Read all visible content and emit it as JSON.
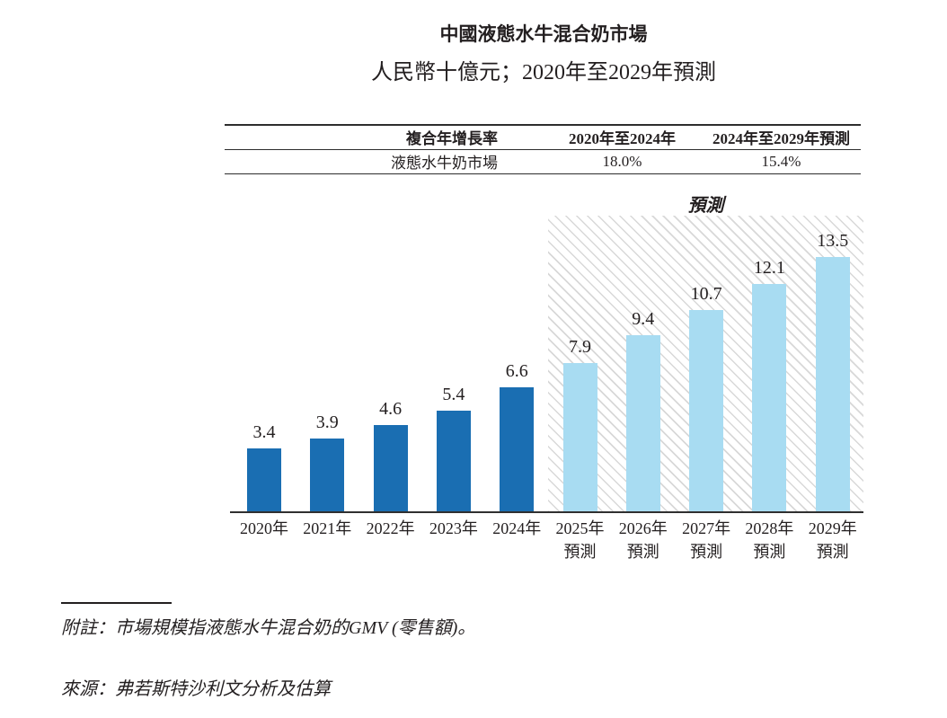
{
  "title": "中國液態水牛混合奶市場",
  "subtitle": "人民幣十億元；2020年至2029年預測",
  "cagr_table": {
    "headers": [
      "複合年增長率",
      "2020年至2024年",
      "2024年至2029年預測"
    ],
    "rows": [
      [
        "液態水牛奶市場",
        "18.0%",
        "15.4%"
      ]
    ]
  },
  "chart_data": {
    "type": "bar",
    "title": "中國液態水牛混合奶市場",
    "unit": "人民幣十億元",
    "categories": [
      "2020年",
      "2021年",
      "2022年",
      "2023年",
      "2024年",
      "2025年預測",
      "2026年預測",
      "2027年預測",
      "2028年預測",
      "2029年預測"
    ],
    "values": [
      3.4,
      3.9,
      4.6,
      5.4,
      6.6,
      7.9,
      9.4,
      10.7,
      12.1,
      13.5
    ],
    "points": [
      {
        "label": "2020年",
        "sublabel": "",
        "value": 3.4,
        "forecast": false
      },
      {
        "label": "2021年",
        "sublabel": "",
        "value": 3.9,
        "forecast": false
      },
      {
        "label": "2022年",
        "sublabel": "",
        "value": 4.6,
        "forecast": false
      },
      {
        "label": "2023年",
        "sublabel": "",
        "value": 5.4,
        "forecast": false
      },
      {
        "label": "2024年",
        "sublabel": "",
        "value": 6.6,
        "forecast": false
      },
      {
        "label": "2025年",
        "sublabel": "預測",
        "value": 7.9,
        "forecast": true
      },
      {
        "label": "2026年",
        "sublabel": "預測",
        "value": 9.4,
        "forecast": true
      },
      {
        "label": "2027年",
        "sublabel": "預測",
        "value": 10.7,
        "forecast": true
      },
      {
        "label": "2028年",
        "sublabel": "預測",
        "value": 12.1,
        "forecast": true
      },
      {
        "label": "2029年",
        "sublabel": "預測",
        "value": 13.5,
        "forecast": true
      }
    ],
    "forecast_start_index": 5,
    "annotation": "預測",
    "colors": {
      "actual_bar": "#1a6eb2",
      "forecast_bar": "#a8dcf2",
      "hatch_line": "#d8d8d8",
      "text": "#231f20"
    },
    "xlabel": "",
    "ylabel": "",
    "ylim": [
      0,
      14
    ],
    "grid": false,
    "legend": false,
    "data_labels": true
  },
  "footnote": {
    "note": "附註：市場規模指液態水牛混合奶的GMV (零售額)。",
    "source": "來源：弗若斯特沙利文分析及估算"
  }
}
